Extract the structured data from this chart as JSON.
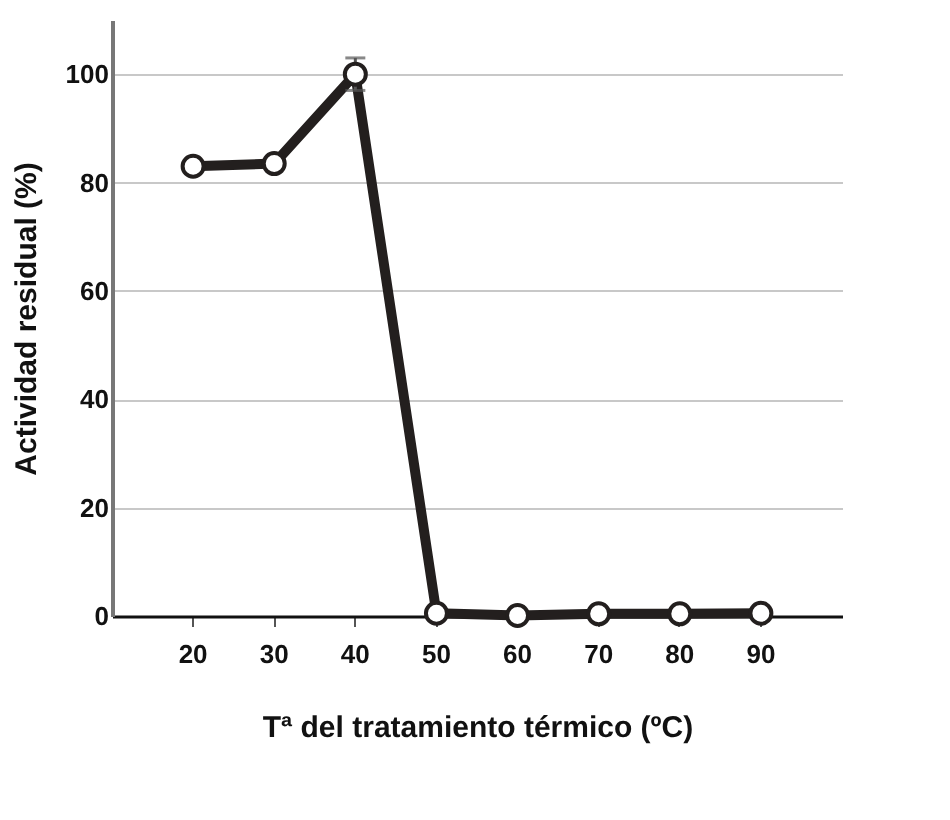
{
  "chart_data": {
    "type": "line",
    "xlabel": "Tª del tratamiento térmico (ºC)",
    "ylabel": "Actividad residual (%)",
    "categories": [
      "20",
      "30",
      "40",
      "50",
      "60",
      "70",
      "80",
      "90"
    ],
    "series": [
      {
        "color": "#231f1e",
        "values": [
          83,
          83.5,
          100,
          0.5,
          0.1,
          0.4,
          0.4,
          0.5
        ],
        "errors": [
          null,
          null,
          3,
          null,
          null,
          null,
          null,
          null
        ]
      }
    ],
    "ylim": [
      0,
      110
    ],
    "yticks": [
      0,
      20,
      40,
      60,
      80,
      100
    ],
    "grid": "y",
    "marker": "circle",
    "line_style": "solid"
  }
}
